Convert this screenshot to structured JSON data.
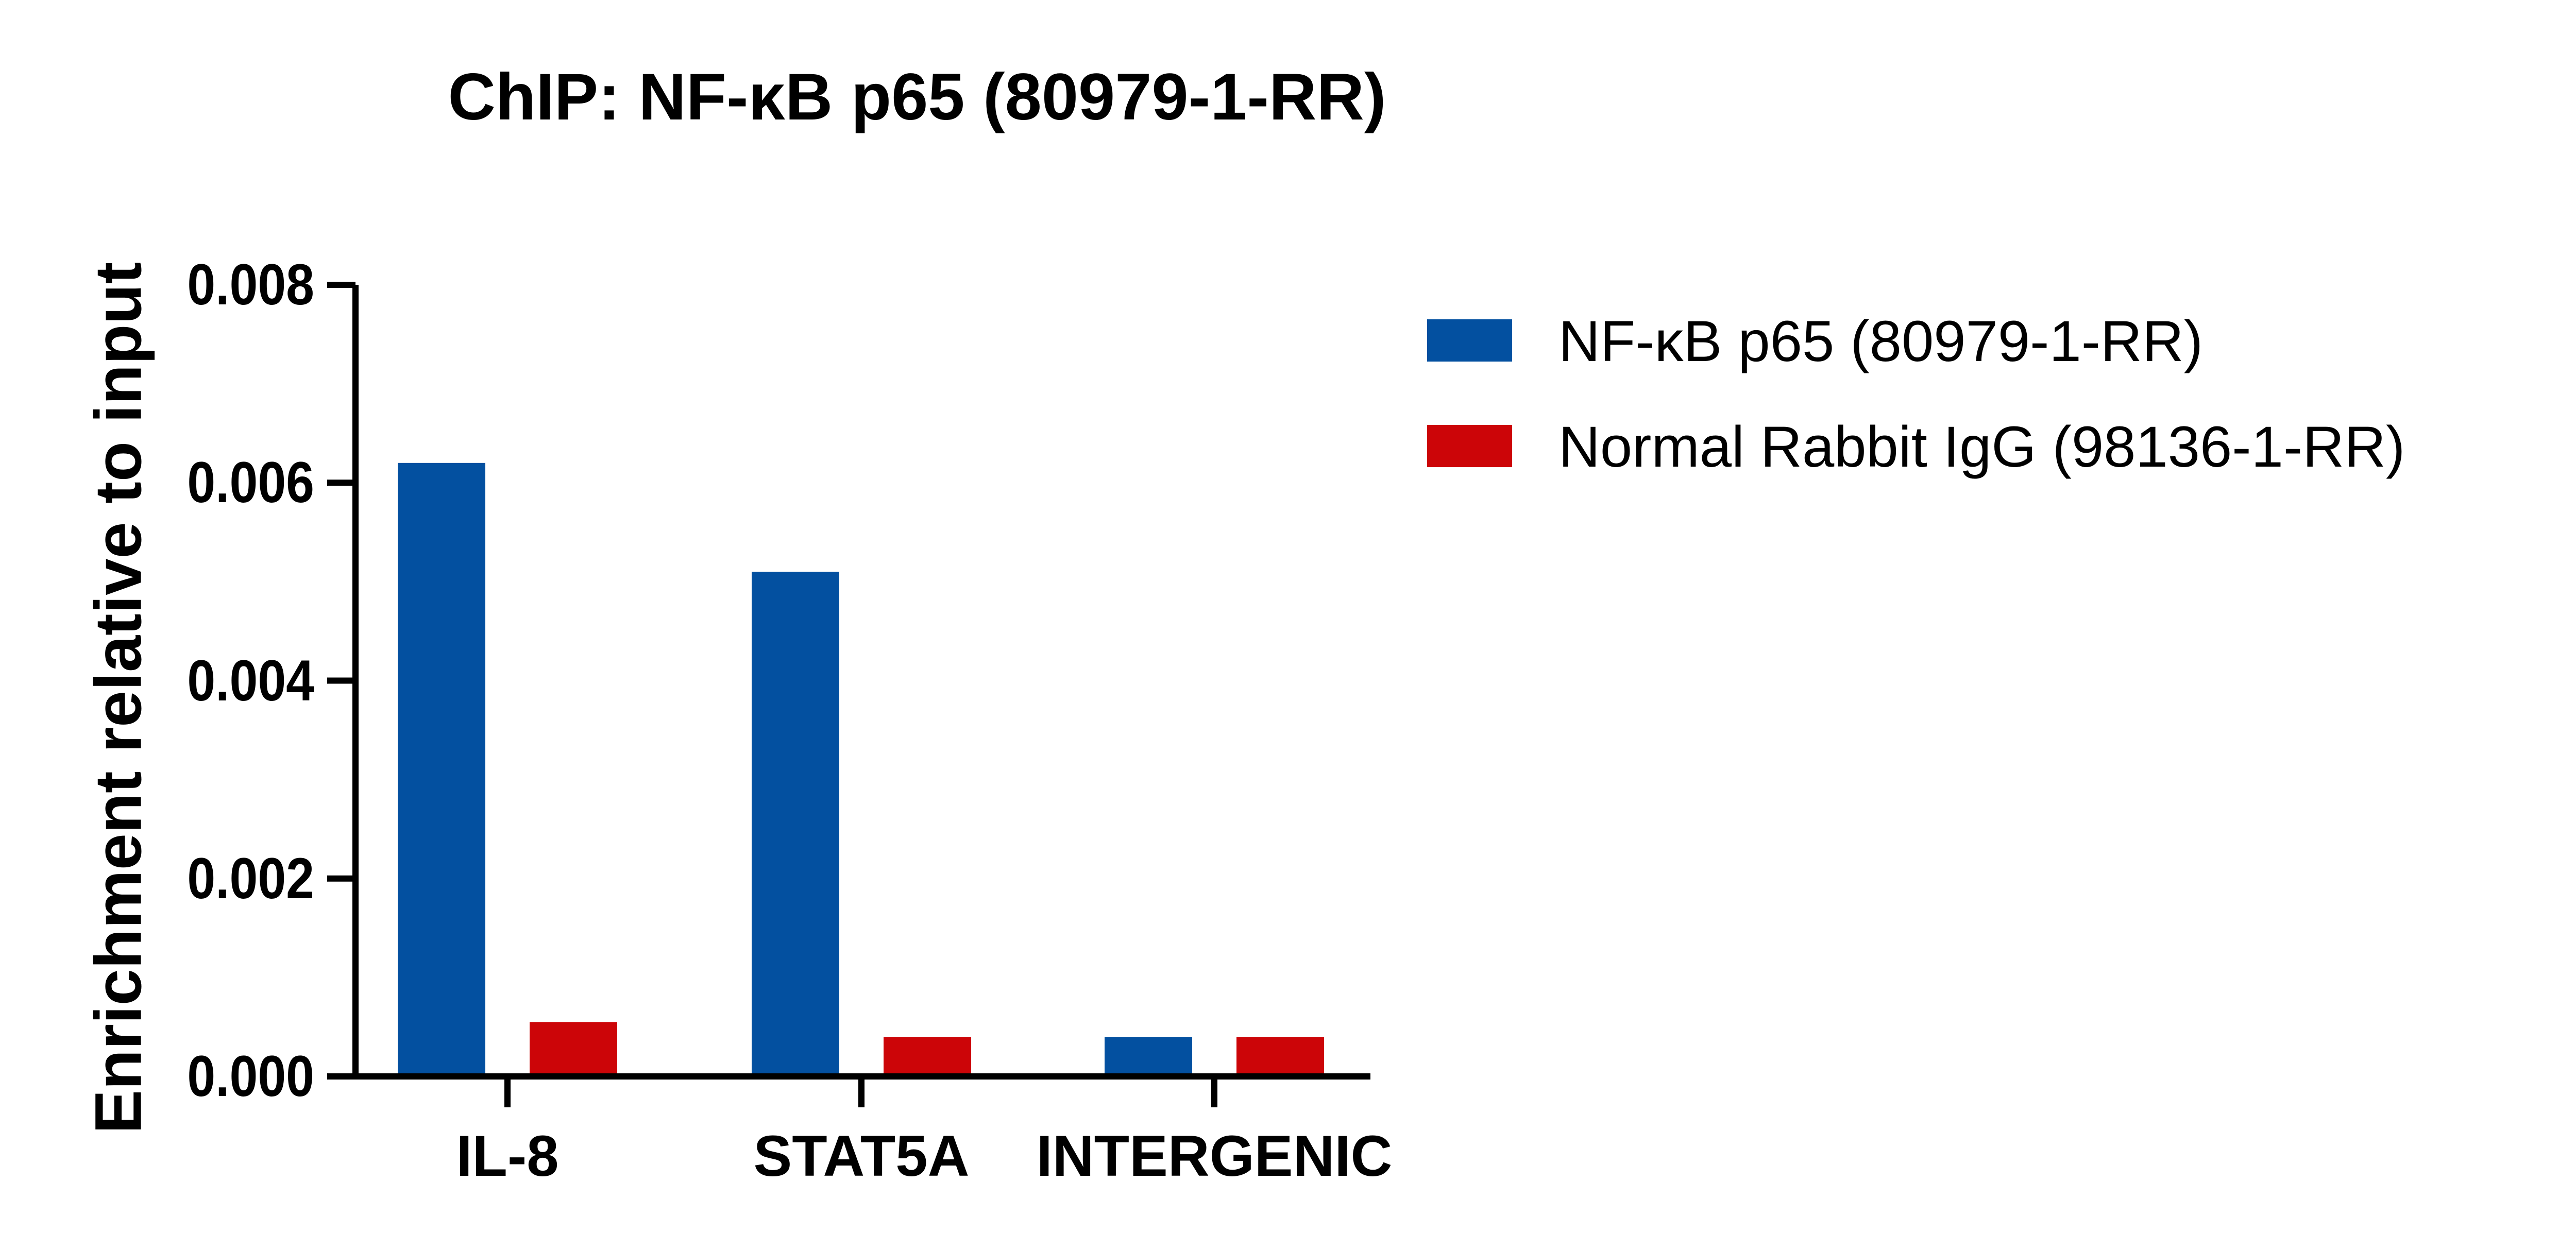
{
  "chart_data": {
    "type": "bar",
    "title": "ChIP: NF-κB p65 (80979-1-RR)",
    "xlabel": "",
    "ylabel": "Enrichment relative to input",
    "categories": [
      "IL-8",
      "STAT5A",
      "INTERGENIC"
    ],
    "series": [
      {
        "name": "NF-κB p65 (80979-1-RR)",
        "color": "#0350A0",
        "values": [
          0.0062,
          0.0051,
          0.0004
        ]
      },
      {
        "name": "Normal Rabbit IgG (98136-1-RR)",
        "color": "#CC0508",
        "values": [
          0.00055,
          0.0004,
          0.0004
        ]
      }
    ],
    "ylim": [
      0,
      0.008
    ],
    "yticks": [
      "0.000",
      "0.002",
      "0.004",
      "0.006",
      "0.008"
    ],
    "grid": false,
    "legend_position": "right"
  }
}
